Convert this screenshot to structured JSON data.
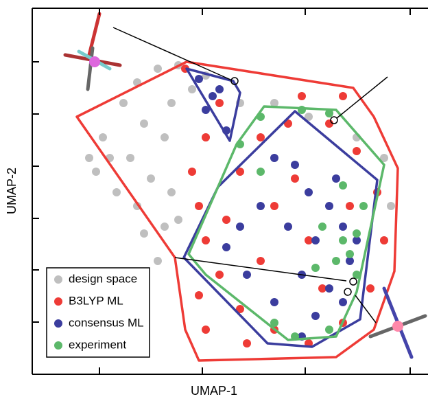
{
  "chart_data": {
    "type": "scatter",
    "xlabel": "UMAP-1",
    "ylabel": "UMAP-2",
    "xlim": [
      0,
      573
    ],
    "ylim": [
      0,
      533
    ],
    "xticks": [
      98,
      248,
      398,
      551
    ],
    "yticks": [
      76,
      152,
      227,
      303,
      379,
      455
    ],
    "series": [
      {
        "name": "design space",
        "color": "#bfbfbf",
        "x": [
          103,
          133,
          153,
          183,
          213,
          93,
          123,
          153,
          173,
          193,
          163,
          143,
          113,
          203,
          233,
          253,
          353,
          403,
          473,
          513,
          523,
          513,
          193,
          183,
          213,
          253,
          303,
          83,
          163,
          203
        ],
        "y": [
          345,
          395,
          425,
          445,
          450,
          295,
          265,
          245,
          285,
          345,
          365,
          315,
          315,
          395,
          415,
          435,
          395,
          375,
          345,
          315,
          245,
          195,
          215,
          165,
          225,
          345,
          395,
          315,
          205,
          265
        ]
      },
      {
        "name": "B3LYP ML",
        "color": "#ee3b36",
        "x": [
          223,
          273,
          253,
          233,
          243,
          253,
          273,
          303,
          353,
          403,
          453,
          493,
          513,
          503,
          473,
          433,
          373,
          333,
          303,
          353,
          403,
          333,
          283,
          243,
          423,
          383,
          463,
          313,
          253,
          453,
          393
        ],
        "y": [
          445,
          395,
          345,
          295,
          245,
          195,
          145,
          95,
          65,
          45,
          75,
          125,
          195,
          265,
          325,
          365,
          365,
          345,
          295,
          245,
          195,
          165,
          225,
          115,
          125,
          285,
          245,
          45,
          65,
          405,
          405
        ],
        "hulls": [
          {
            "x": [
              65,
              225,
              468,
              498,
              533,
              528,
              498,
              443,
              243,
              223,
              208
            ],
            "y": [
              375,
              455,
              417,
              375,
              300,
              150,
              65,
              25,
              20,
              65,
              170
            ]
          }
        ]
      },
      {
        "name": "consensus ML",
        "color": "#3b3d9e",
        "x": [
          243,
          273,
          253,
          283,
          263,
          353,
          383,
          403,
          433,
          453,
          473,
          463,
          433,
          413,
          393,
          353,
          313,
          283,
          373,
          413,
          443,
          333,
          303,
          393,
          453
        ],
        "y": [
          430,
          415,
          385,
          355,
          405,
          315,
          305,
          265,
          245,
          215,
          195,
          165,
          125,
          85,
          55,
          105,
          145,
          185,
          215,
          195,
          285,
          245,
          215,
          145,
          105
        ],
        "hulls": [
          {
            "x": [
              225,
              293,
              303,
              288
            ],
            "y": [
              445,
              427,
              410,
              340
            ]
          },
          {
            "x": [
              383,
              503,
              478,
              408,
              343,
              221,
              271
            ],
            "y": [
              383,
              283,
              80,
              40,
              45,
              170,
              273
            ]
          }
        ]
      },
      {
        "name": "experiment",
        "color": "#5cb86a",
        "x": [
          333,
          393,
          433,
          453,
          463,
          443,
          473,
          423,
          473,
          433,
          383,
          353,
          303,
          453,
          483,
          333,
          413
        ],
        "y": [
          375,
          385,
          380,
          195,
          175,
          165,
          205,
          215,
          145,
          65,
          55,
          75,
          335,
          275,
          245,
          295,
          155
        ],
        "hulls": [
          {
            "x": [
              338,
              443,
              513,
              473,
              443,
              373,
              253,
              228,
              298
            ],
            "y": [
              390,
              385,
              305,
              120,
              55,
              50,
              145,
              175,
              335
            ]
          }
        ]
      }
    ]
  }
}
